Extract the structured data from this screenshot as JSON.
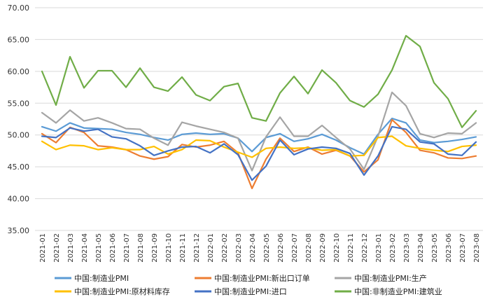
{
  "chart_data": {
    "type": "line",
    "title": "",
    "xlabel": "",
    "ylabel": "",
    "ylim": [
      35,
      70
    ],
    "yticks": [
      "35.00",
      "40.00",
      "45.00",
      "50.00",
      "55.00",
      "60.00",
      "65.00",
      "70.00"
    ],
    "grid": "horizontal",
    "legend_position": "bottom",
    "categories": [
      "2021-01",
      "2021-02",
      "2021-03",
      "2021-04",
      "2021-05",
      "2021-06",
      "2021-07",
      "2021-08",
      "2021-09",
      "2021-10",
      "2021-11",
      "2021-12",
      "2022-01",
      "2022-02",
      "2022-03",
      "2022-04",
      "2022-05",
      "2022-06",
      "2022-07",
      "2022-08",
      "2022-09",
      "2022-10",
      "2022-11",
      "2022-12",
      "2023-01",
      "2023-02",
      "2023-03",
      "2023-04",
      "2023-05",
      "2023-06",
      "2023-07",
      "2023-08"
    ],
    "series": [
      {
        "name": "中国:制造业PMI",
        "color": "#5b9bd5",
        "values": [
          51.3,
          50.6,
          51.9,
          51.1,
          51.0,
          50.9,
          50.4,
          50.1,
          49.6,
          49.2,
          50.1,
          50.3,
          50.1,
          50.2,
          49.5,
          47.4,
          49.6,
          50.2,
          49.0,
          49.4,
          50.1,
          49.2,
          48.0,
          47.0,
          50.1,
          52.6,
          51.9,
          49.2,
          48.8,
          49.0,
          49.3,
          49.7
        ]
      },
      {
        "name": "中国:制造业PMI:新出口订单",
        "color": "#ed7d31",
        "values": [
          50.2,
          48.8,
          51.2,
          50.4,
          48.3,
          48.1,
          47.7,
          46.7,
          46.2,
          46.6,
          48.5,
          48.1,
          48.4,
          49.0,
          47.2,
          41.6,
          46.2,
          49.5,
          47.4,
          48.1,
          47.0,
          47.6,
          46.7,
          44.2,
          46.1,
          52.4,
          50.4,
          47.6,
          47.2,
          46.4,
          46.3,
          46.7
        ]
      },
      {
        "name": "中国:制造业PMI:生产",
        "color": "#a5a5a5",
        "values": [
          53.5,
          51.9,
          53.9,
          52.2,
          52.7,
          51.9,
          51.0,
          50.9,
          49.5,
          48.4,
          52.0,
          51.4,
          50.9,
          50.4,
          49.5,
          44.4,
          49.7,
          52.8,
          49.8,
          49.8,
          51.5,
          49.6,
          47.8,
          44.6,
          49.8,
          56.7,
          54.6,
          50.2,
          49.6,
          50.3,
          50.2,
          51.9
        ]
      },
      {
        "name": "中国:制造业PMI:原材料库存",
        "color": "#ffc000",
        "values": [
          49.0,
          47.7,
          48.4,
          48.3,
          47.7,
          48.0,
          47.7,
          47.7,
          48.2,
          47.0,
          47.7,
          49.2,
          49.1,
          48.1,
          47.3,
          46.5,
          47.9,
          48.1,
          47.9,
          48.0,
          47.6,
          47.7,
          46.7,
          46.8,
          49.6,
          49.8,
          48.3,
          47.9,
          47.6,
          47.4,
          48.2,
          48.4
        ]
      },
      {
        "name": "中国:制造业PMI:进口",
        "color": "#4472c4",
        "values": [
          49.8,
          49.6,
          51.1,
          50.6,
          50.9,
          49.7,
          49.4,
          48.3,
          46.8,
          47.5,
          48.1,
          48.2,
          47.2,
          48.6,
          46.9,
          42.9,
          45.1,
          49.2,
          46.9,
          47.8,
          48.1,
          47.9,
          47.1,
          43.7,
          46.7,
          51.3,
          50.9,
          48.9,
          48.6,
          47.0,
          46.8,
          48.9
        ]
      },
      {
        "name": "中国:非制造业PMI:建筑业",
        "color": "#70ad47",
        "values": [
          60.0,
          54.7,
          62.3,
          57.4,
          60.1,
          60.1,
          57.5,
          60.5,
          57.5,
          56.9,
          59.1,
          56.3,
          55.4,
          57.6,
          58.1,
          52.7,
          52.2,
          56.6,
          59.2,
          56.5,
          60.2,
          58.2,
          55.4,
          54.4,
          56.4,
          60.2,
          65.6,
          63.9,
          58.2,
          55.7,
          51.2,
          53.8
        ]
      }
    ]
  }
}
